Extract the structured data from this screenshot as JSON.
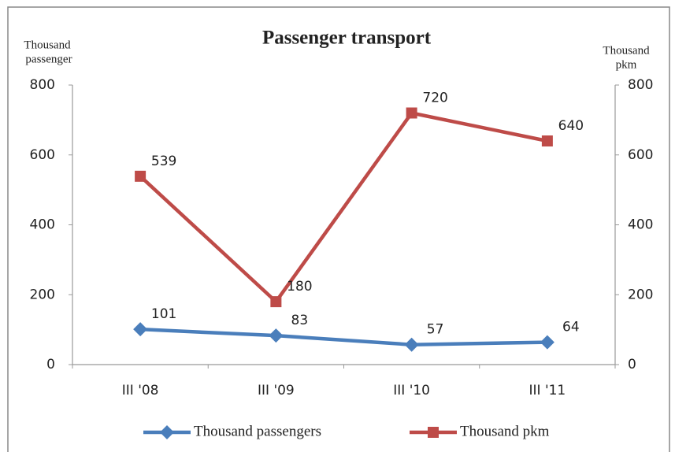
{
  "chart_data": {
    "type": "line",
    "title": "Passenger transport",
    "y_label": [
      "Thousand",
      "passenger"
    ],
    "y2_label": [
      "Thousand",
      "pkm"
    ],
    "categories": [
      "III '08",
      "III '09",
      "III '10",
      "III '11"
    ],
    "series": [
      {
        "name": "Thousand passengers",
        "color": "#4a7ebb",
        "marker": "diamond",
        "axis": "y",
        "values": [
          101,
          83,
          57,
          64
        ]
      },
      {
        "name": "Thousand pkm",
        "color": "#be4b48",
        "marker": "square",
        "axis": "y2",
        "values": [
          539,
          180,
          720,
          640
        ]
      }
    ],
    "ylim": [
      0,
      800
    ],
    "yticks": [
      0,
      200,
      400,
      600,
      800
    ],
    "y2lim": [
      0,
      800
    ],
    "y2ticks": [
      0,
      200,
      400,
      600,
      800
    ],
    "legend": "bottom",
    "grid": false
  }
}
